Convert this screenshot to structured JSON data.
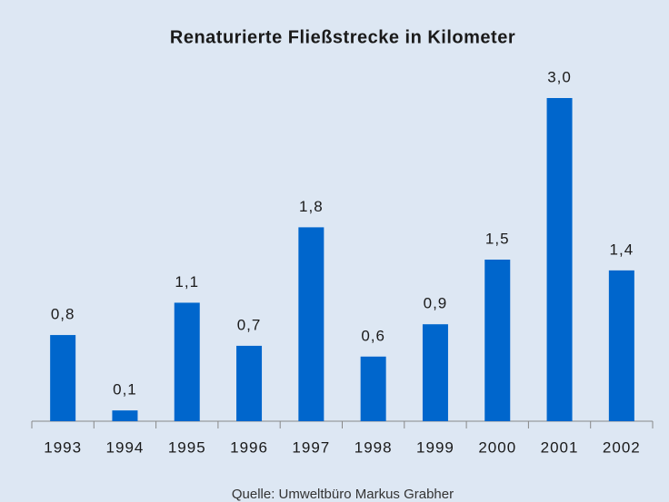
{
  "chart_data": {
    "type": "bar",
    "title": "Renaturierte Fließstrecke in Kilometer",
    "categories": [
      "1993",
      "1994",
      "1995",
      "1996",
      "1997",
      "1998",
      "1999",
      "2000",
      "2001",
      "2002"
    ],
    "values": [
      0.8,
      0.1,
      1.1,
      0.7,
      1.8,
      0.6,
      0.9,
      1.5,
      3.0,
      1.4
    ],
    "value_labels": [
      "0,8",
      "0,1",
      "1,1",
      "0,7",
      "1,8",
      "0,6",
      "0,9",
      "1,5",
      "3,0",
      "1,4"
    ],
    "color": "#0066cc",
    "source": "Quelle: Umweltbüro Markus Grabher"
  }
}
